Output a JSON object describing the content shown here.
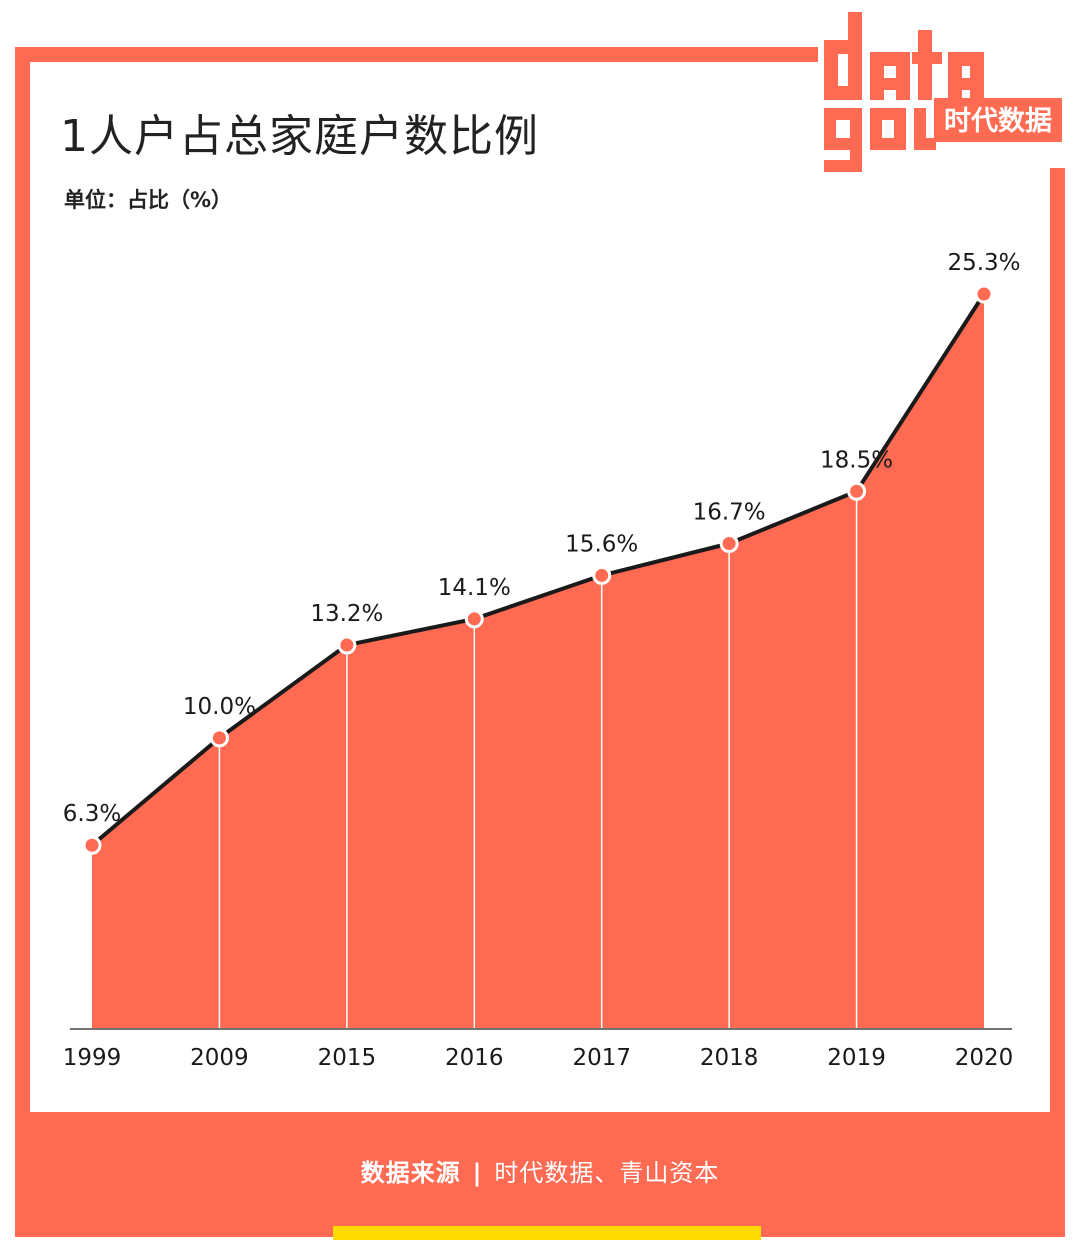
{
  "title": "1人户占总家庭户数比例",
  "unit_label": "单位：占比（%）",
  "logo": {
    "latin": "data good",
    "brand": "时代数据"
  },
  "source": {
    "label": "数据来源",
    "separator": "|",
    "text": "时代数据、青山资本"
  },
  "colors": {
    "accent": "#ff6b52",
    "line": "#1a1a1a",
    "highlight": "#ffdc00"
  },
  "chart_data": {
    "type": "area",
    "categories": [
      "1999",
      "2009",
      "2015",
      "2016",
      "2017",
      "2018",
      "2019",
      "2020"
    ],
    "values": [
      6.3,
      10.0,
      13.2,
      14.1,
      15.6,
      16.7,
      18.5,
      25.3
    ],
    "data_labels": [
      "6.3%",
      "10.0%",
      "13.2%",
      "14.1%",
      "15.6%",
      "16.7%",
      "18.5%",
      "25.3%"
    ],
    "title": "1人户占总家庭户数比例",
    "ylabel": "占比（%）",
    "ylim": [
      0,
      26.5
    ],
    "grid": false,
    "legend": "none"
  }
}
